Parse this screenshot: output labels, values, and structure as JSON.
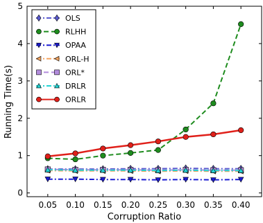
{
  "chart_data": {
    "type": "line",
    "title": "",
    "xlabel": "Corruption Ratio",
    "ylabel": "Running Time(s)",
    "x": [
      0.05,
      0.1,
      0.15,
      0.2,
      0.25,
      0.3,
      0.35,
      0.4
    ],
    "x_tick_labels": [
      "0.05",
      "0.10",
      "0.15",
      "0.20",
      "0.25",
      "0.30",
      "0.35",
      "0.40"
    ],
    "xlim": [
      0.0125,
      0.4375
    ],
    "ylim": [
      -0.1,
      5
    ],
    "y_ticks": [
      0,
      1,
      2,
      3,
      4,
      5
    ],
    "grid": false,
    "legend_position": "top-left",
    "series": [
      {
        "name": "OLS",
        "color": "#5a5acf",
        "marker": "diamond",
        "linestyle": "dashdot",
        "values": [
          0.64,
          0.64,
          0.64,
          0.65,
          0.65,
          0.66,
          0.65,
          0.65
        ]
      },
      {
        "name": "RLHH",
        "color": "#1e8c1e",
        "marker": "circle",
        "linestyle": "dashed",
        "values": [
          0.93,
          0.9,
          1.0,
          1.07,
          1.15,
          1.7,
          2.4,
          4.52
        ]
      },
      {
        "name": "OPAA",
        "color": "#1a1ad2",
        "marker": "triangle-down",
        "linestyle": "dashdot",
        "values": [
          0.37,
          0.37,
          0.36,
          0.36,
          0.35,
          0.36,
          0.35,
          0.36
        ]
      },
      {
        "name": "ORL-H",
        "color": "#f4a460",
        "marker": "triangle-left",
        "linestyle": "dashdot",
        "values": [
          0.6,
          0.59,
          0.59,
          0.59,
          0.58,
          0.59,
          0.58,
          0.58
        ]
      },
      {
        "name": "ORL*",
        "color": "#b28cdc",
        "marker": "square",
        "linestyle": "dashed",
        "values": [
          0.63,
          0.62,
          0.62,
          0.62,
          0.61,
          0.62,
          0.61,
          0.61
        ]
      },
      {
        "name": "DRLR",
        "color": "#22d3d3",
        "marker": "triangle-up",
        "linestyle": "dashdot",
        "values": [
          0.62,
          0.61,
          0.61,
          0.61,
          0.6,
          0.61,
          0.6,
          0.6
        ]
      },
      {
        "name": "ORLR",
        "color": "#e0201a",
        "marker": "circle",
        "linestyle": "solid",
        "values": [
          0.98,
          1.06,
          1.19,
          1.28,
          1.38,
          1.5,
          1.57,
          1.68
        ]
      }
    ]
  }
}
